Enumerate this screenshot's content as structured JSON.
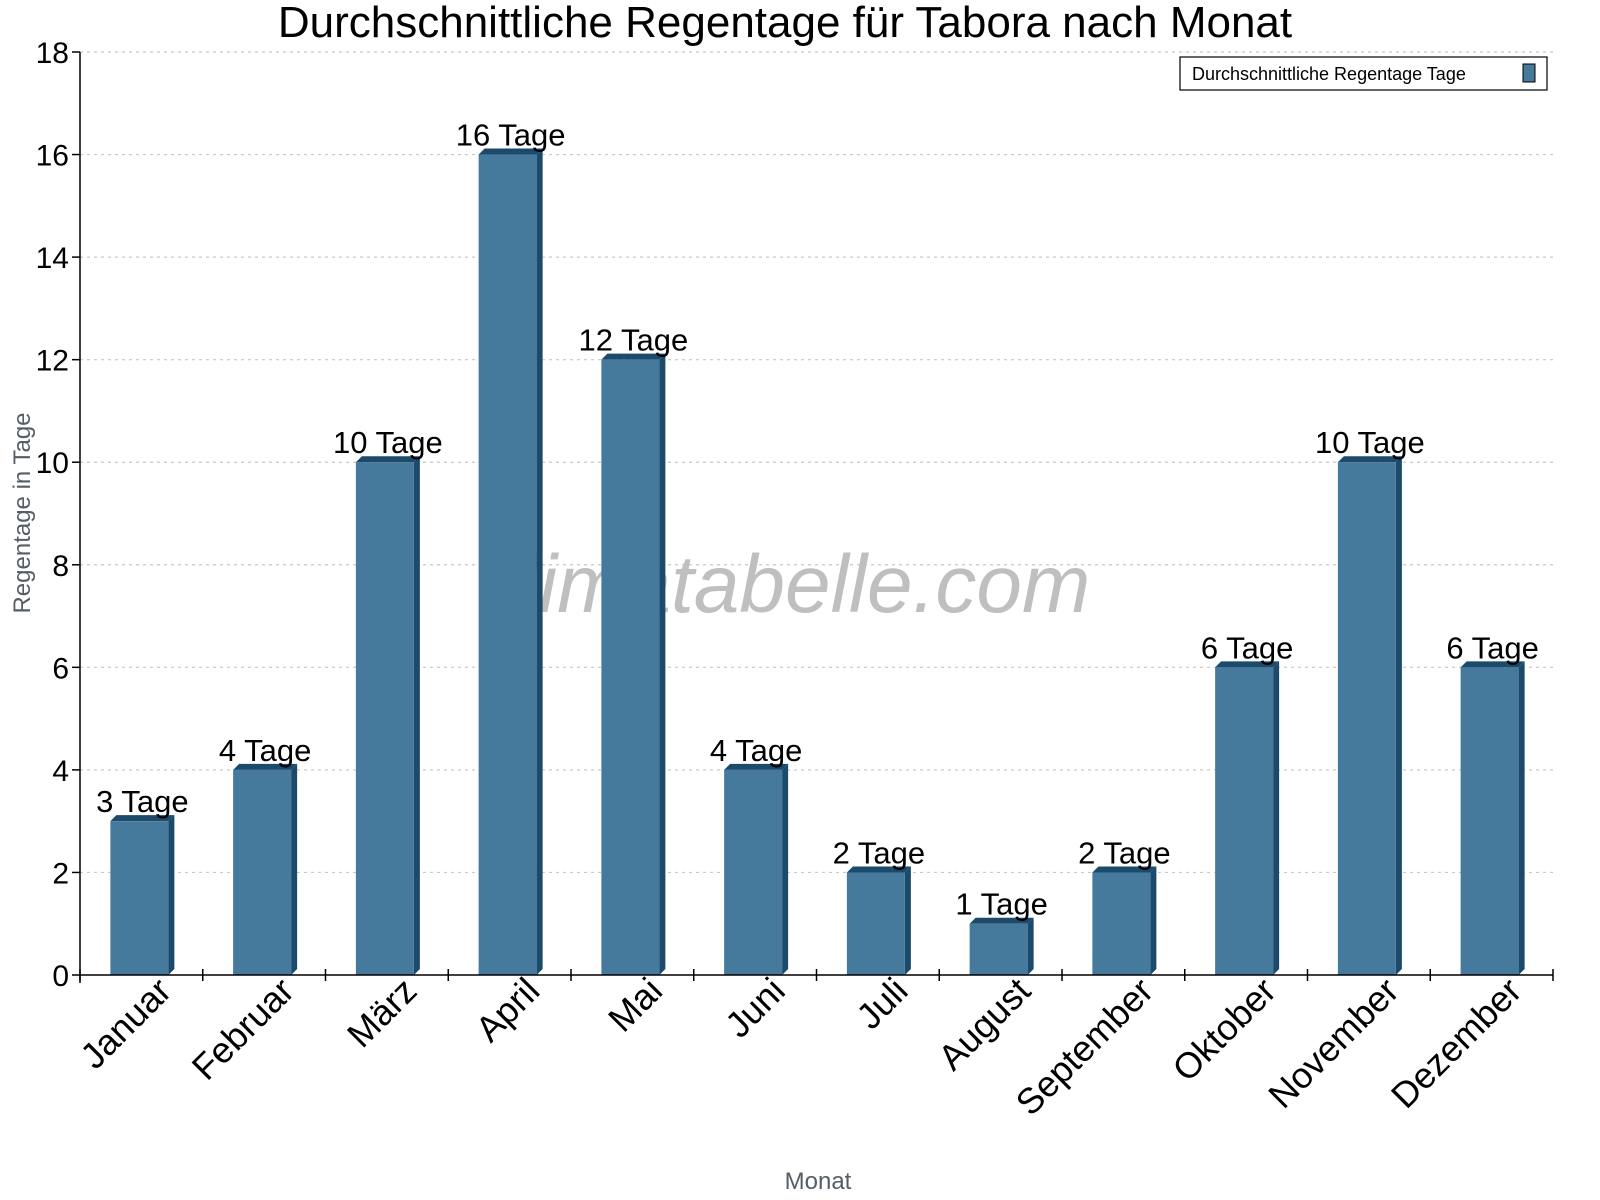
{
  "chart_data": {
    "type": "bar",
    "title": "Durchschnittliche Regentage für Tabora nach Monat",
    "xlabel": "Monat",
    "ylabel": "Regentage in Tage",
    "categories": [
      "Januar",
      "Februar",
      "März",
      "April",
      "Mai",
      "Juni",
      "Juli",
      "August",
      "September",
      "Oktober",
      "November",
      "Dezember"
    ],
    "series": [
      {
        "name": "Durchschnittliche Regentage Tage",
        "values": [
          3,
          4,
          10,
          16,
          12,
          4,
          2,
          1,
          2,
          6,
          10,
          6
        ],
        "color": "#467a9c",
        "side_color": "#1b4a6b"
      }
    ],
    "data_labels": [
      "3 Tage",
      "4 Tage",
      "10 Tage",
      "16 Tage",
      "12 Tage",
      "4 Tage",
      "2 Tage",
      "1 Tage",
      "2 Tage",
      "6 Tage",
      "10 Tage",
      "6 Tage"
    ],
    "ylim": [
      0,
      18
    ],
    "yticks": [
      0,
      2,
      4,
      6,
      8,
      10,
      12,
      14,
      16,
      18
    ],
    "grid": true,
    "legend_position": "top-right",
    "watermark": "klimatabelle.com"
  }
}
